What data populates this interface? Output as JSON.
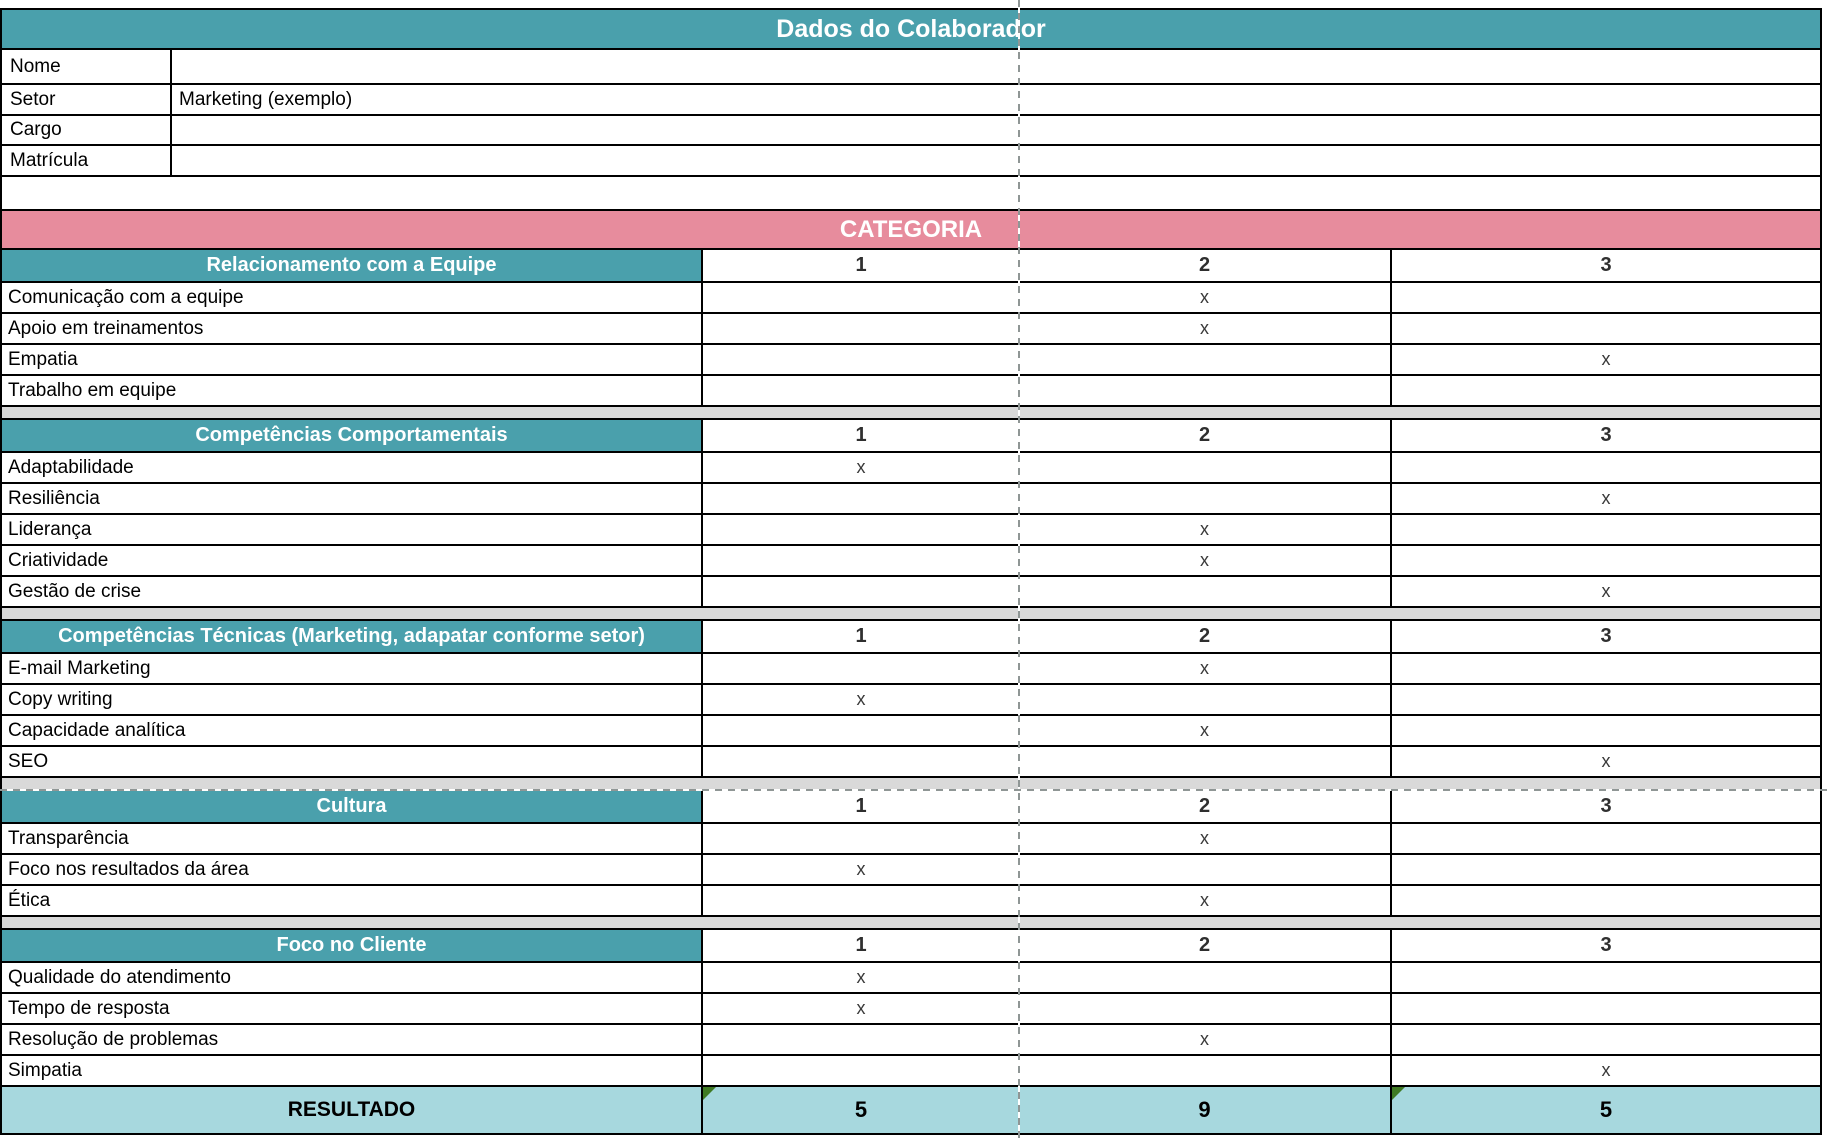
{
  "colors": {
    "teal": "#4AA0AC",
    "pink": "#E78C9D",
    "light_blue": "#A7D8DE",
    "spacer_gray": "#D9D9D9",
    "triangle_green": "#3F7A23",
    "border_black": "#000000"
  },
  "header": {
    "title": "Dados do Colaborador"
  },
  "employee_fields": [
    {
      "label": "Nome",
      "value": ""
    },
    {
      "label": "Setor",
      "value": "Marketing (exemplo)"
    },
    {
      "label": "Cargo",
      "value": ""
    },
    {
      "label": "Matrícula",
      "value": ""
    }
  ],
  "category_banner": "CATEGORIA",
  "score_columns": [
    "1",
    "2",
    "3"
  ],
  "mark_symbol": "x",
  "sections": [
    {
      "title": "Relacionamento com a Equipe",
      "rows": [
        {
          "label": "Comunicação com a equipe",
          "mark": 2
        },
        {
          "label": "Apoio em treinamentos",
          "mark": 2
        },
        {
          "label": "Empatia",
          "mark": 3
        },
        {
          "label": "Trabalho em equipe",
          "mark": 0
        }
      ]
    },
    {
      "title": "Competências Comportamentais",
      "rows": [
        {
          "label": "Adaptabilidade",
          "mark": 1
        },
        {
          "label": "Resiliência",
          "mark": 3
        },
        {
          "label": "Liderança",
          "mark": 2
        },
        {
          "label": "Criatividade",
          "mark": 2
        },
        {
          "label": "Gestão de crise",
          "mark": 3
        }
      ]
    },
    {
      "title": "Competências Técnicas (Marketing, adapatar conforme setor)",
      "rows": [
        {
          "label": "E-mail Marketing",
          "mark": 2
        },
        {
          "label": "Copy writing",
          "mark": 1
        },
        {
          "label": "Capacidade analítica",
          "mark": 2
        },
        {
          "label": "SEO",
          "mark": 3
        }
      ]
    },
    {
      "title": "Cultura",
      "rows": [
        {
          "label": "Transparência",
          "mark": 2
        },
        {
          "label": "Foco nos resultados da área",
          "mark": 1
        },
        {
          "label": "Ética",
          "mark": 2
        }
      ]
    },
    {
      "title": "Foco no Cliente",
      "rows": [
        {
          "label": "Qualidade do atendimento",
          "mark": 1
        },
        {
          "label": "Tempo de resposta",
          "mark": 1
        },
        {
          "label": "Resolução de problemas",
          "mark": 2
        },
        {
          "label": "Simpatia",
          "mark": 3
        }
      ]
    }
  ],
  "result": {
    "label": "RESULTADO",
    "values": [
      "5",
      "9",
      "5"
    ]
  }
}
